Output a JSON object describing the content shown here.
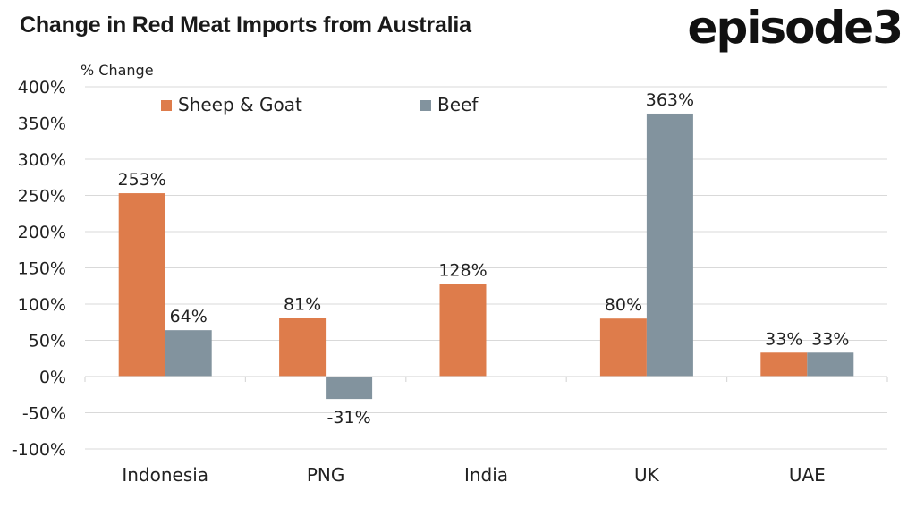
{
  "header": {
    "title": "Change in Red Meat Imports from Australia",
    "logo_text": "episode3"
  },
  "chart_data": {
    "type": "bar",
    "title": "Change in Red Meat Imports from Australia",
    "ylabel": "% Change",
    "xlabel": "",
    "categories": [
      "Indonesia",
      "PNG",
      "India",
      "UK",
      "UAE"
    ],
    "series": [
      {
        "name": "Sheep & Goat",
        "color": "#de7c4b",
        "values": [
          253,
          81,
          128,
          80,
          33
        ],
        "labels": [
          "253%",
          "81%",
          "128%",
          "80%",
          "33%"
        ]
      },
      {
        "name": "Beef",
        "color": "#82939e",
        "values": [
          64,
          -31,
          null,
          363,
          33
        ],
        "labels": [
          "64%",
          "-31%",
          "",
          "363%",
          "33%"
        ]
      }
    ],
    "ylim": [
      -100,
      400
    ],
    "yticks": [
      400,
      350,
      300,
      250,
      200,
      150,
      100,
      50,
      0,
      -50,
      -100
    ],
    "ytick_labels": [
      "400%",
      "350%",
      "300%",
      "250%",
      "200%",
      "150%",
      "100%",
      "50%",
      "0%",
      "-50%",
      "-100%"
    ],
    "grid": true,
    "legend_position": "top-left"
  }
}
